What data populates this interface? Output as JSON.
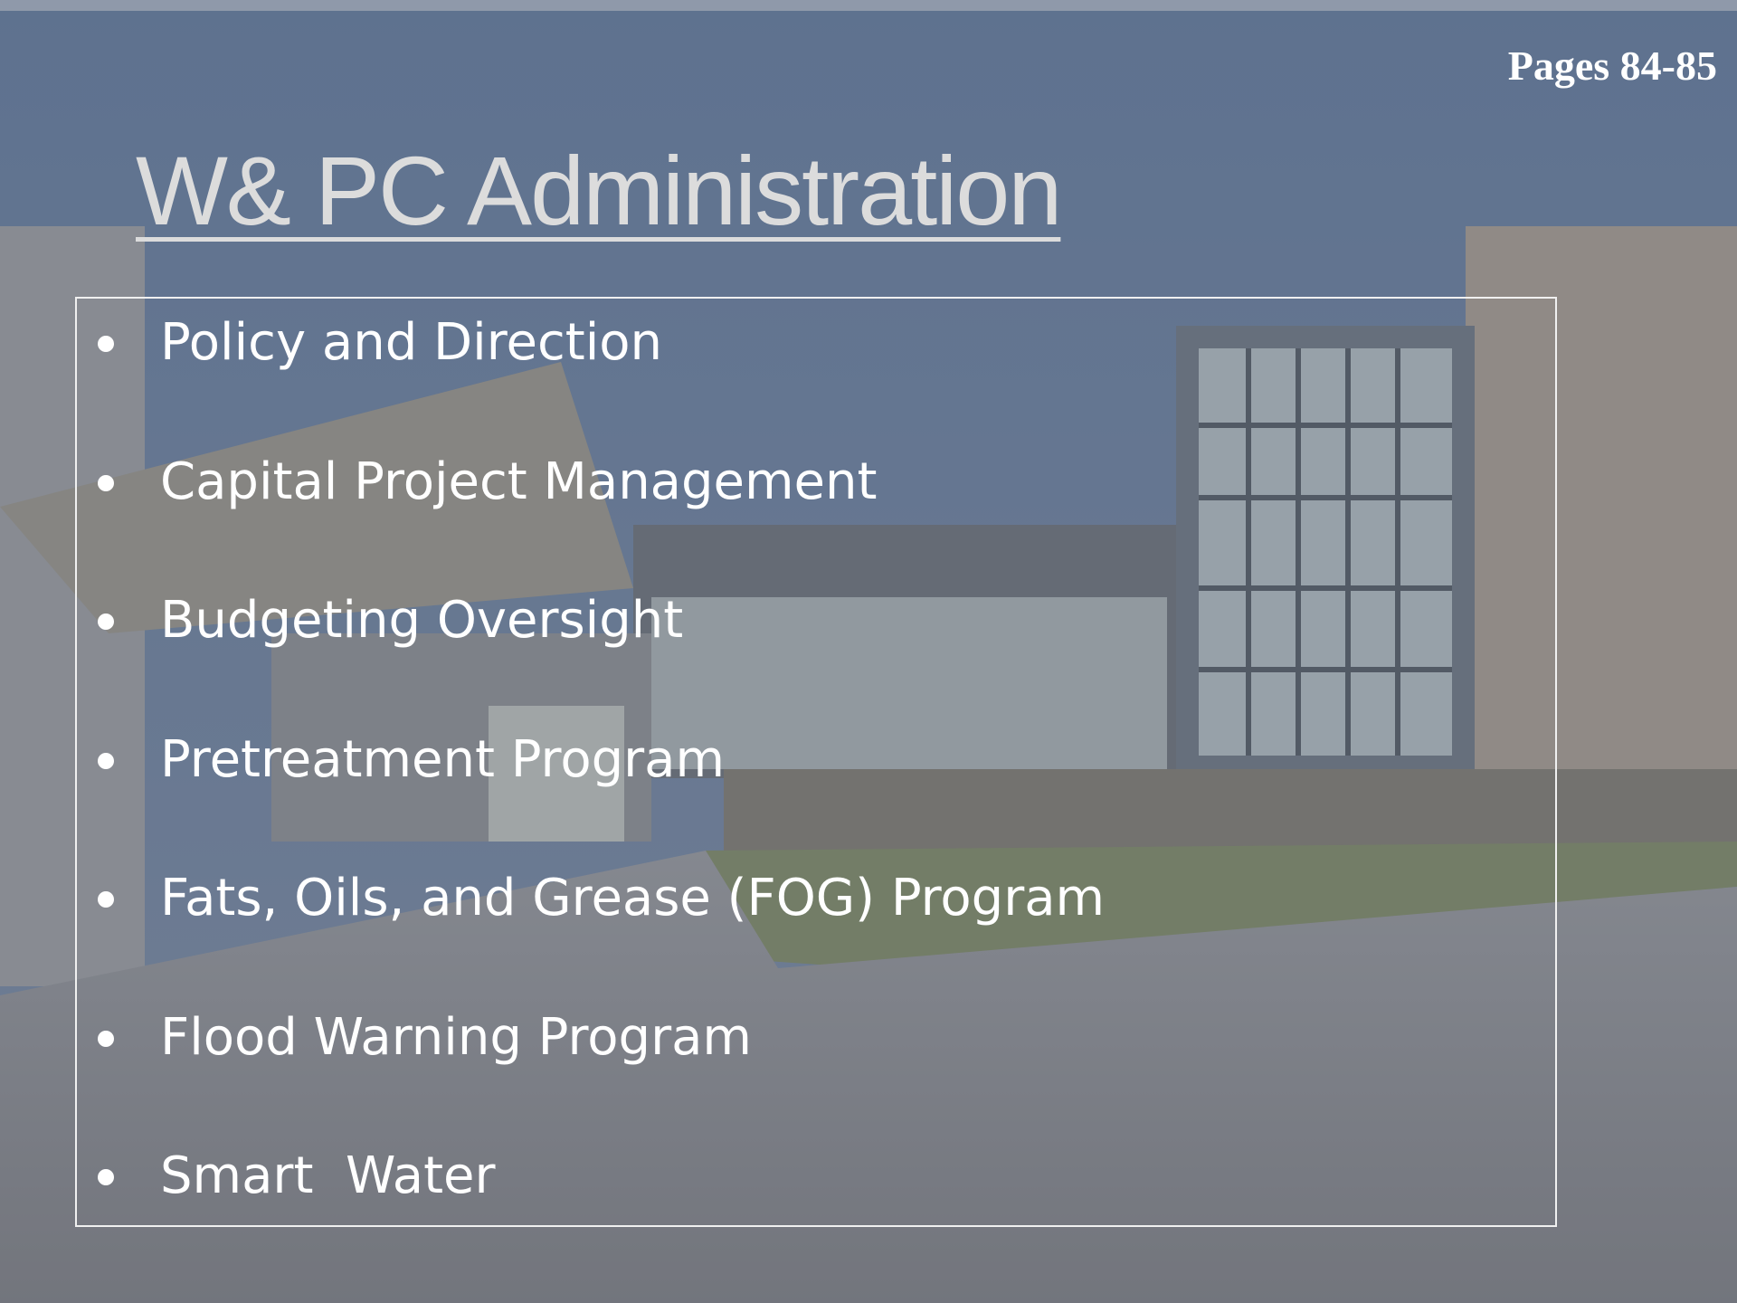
{
  "header": {
    "pages": "Pages 84-85"
  },
  "title": "W& PC Administration",
  "items": [
    "Policy and Direction",
    "Capital Project Management",
    "Budgeting Oversight",
    "Pretreatment Program",
    "Fats, Oils, and Grease (FOG) Program",
    "Flood Warning Program",
    "Smart  Water"
  ]
}
